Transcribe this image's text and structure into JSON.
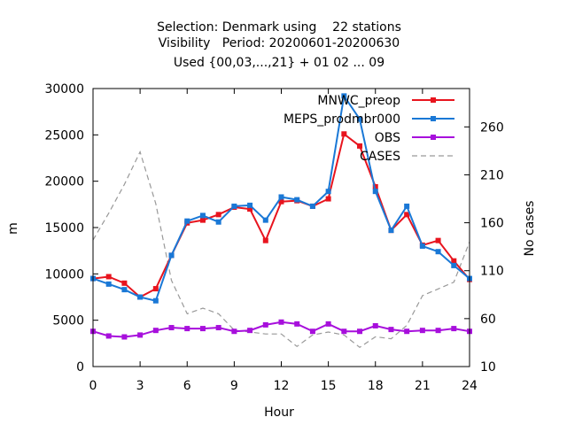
{
  "chart_data": {
    "type": "line",
    "title_lines": [
      "Selection: Denmark using    22 stations",
      "Visibility   Period: 20200601-20200630",
      "Used {00,03,...,21} + 01 02 ... 09"
    ],
    "xlabel": "Hour",
    "ylabel": "m",
    "y2label": "No cases",
    "xlim": [
      0,
      24
    ],
    "ylim": [
      0,
      30000
    ],
    "y2lim": [
      10,
      300
    ],
    "xticks": [
      0,
      3,
      6,
      9,
      12,
      15,
      18,
      21,
      24
    ],
    "yticks": [
      0,
      5000,
      10000,
      15000,
      20000,
      25000,
      30000
    ],
    "y2ticks": [
      10,
      60,
      110,
      160,
      210,
      260
    ],
    "legend_position": "top-right",
    "x": [
      0,
      1,
      2,
      3,
      4,
      5,
      6,
      7,
      8,
      9,
      10,
      11,
      12,
      13,
      14,
      15,
      16,
      17,
      18,
      19,
      20,
      21,
      22,
      23,
      24
    ],
    "series": [
      {
        "name": "MNWC_preop",
        "axis": "y",
        "color": "#e8141e",
        "marker": "square",
        "values": [
          9500,
          9700,
          9000,
          7500,
          8400,
          12000,
          15500,
          15800,
          16400,
          17200,
          17000,
          13600,
          17800,
          17900,
          17300,
          18100,
          25100,
          23800,
          19400,
          14700,
          16400,
          13100,
          13600,
          11400,
          9400
        ]
      },
      {
        "name": "MEPS_prodmbr000",
        "axis": "y",
        "color": "#1a78d6",
        "marker": "square",
        "values": [
          9500,
          8900,
          8300,
          7500,
          7100,
          12000,
          15700,
          16300,
          15600,
          17300,
          17400,
          15800,
          18300,
          18000,
          17300,
          18900,
          29200,
          26700,
          18900,
          14700,
          17300,
          13000,
          12400,
          10900,
          9500
        ]
      },
      {
        "name": "OBS",
        "axis": "y",
        "color": "#a70fdc",
        "marker": "square",
        "values": [
          3800,
          3300,
          3200,
          3400,
          3900,
          4200,
          4100,
          4100,
          4200,
          3800,
          3900,
          4500,
          4800,
          4600,
          3800,
          4600,
          3800,
          3800,
          4400,
          4000,
          3800,
          3900,
          3900,
          4100,
          3800
        ]
      },
      {
        "name": "CASES",
        "axis": "y2",
        "color": "#999999",
        "dash": true,
        "values": [
          142,
          170,
          200,
          234,
          180,
          100,
          65,
          71,
          65,
          48,
          46,
          44,
          44,
          31,
          43,
          46,
          43,
          30,
          41,
          39,
          53,
          84,
          91,
          98,
          140
        ]
      }
    ]
  }
}
